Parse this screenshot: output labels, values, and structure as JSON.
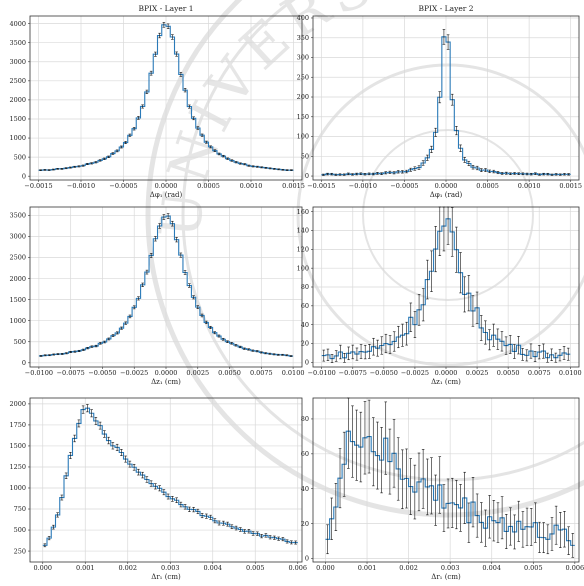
{
  "colors": {
    "hist": "#2a7ab8",
    "errbar": "#111111",
    "grid": "#d9d9d9",
    "watermark": "#e4e4e4"
  },
  "watermark_text": "UNIVERSITÄT",
  "chart_data": [
    {
      "id": "p1",
      "type": "step-histogram",
      "title": "BPIX - Layer 1",
      "xlabel": "Δφ₁ (rad)",
      "ylabel": "",
      "xlim": [
        -0.0016,
        0.0016
      ],
      "ylim": [
        -100,
        4200
      ],
      "xticks": [
        -0.0015,
        -0.001,
        -0.0005,
        0,
        0.0005,
        0.001,
        0.0015
      ],
      "xticklabels": [
        "−0.0015",
        "−0.0010",
        "−0.0005",
        "0.0000",
        "0.0005",
        "0.0010",
        "0.0015"
      ],
      "yticks": [
        0,
        500,
        1000,
        1500,
        2000,
        2500,
        3000,
        3500,
        4000
      ],
      "yticklabels": [
        "0",
        "500",
        "1000",
        "1500",
        "2000",
        "2500",
        "3000",
        "3500",
        "4000"
      ],
      "shape": "lorentz",
      "xmin": -0.0015,
      "xmax": 0.0015,
      "nbins": 60,
      "peak": 4000,
      "center": 0,
      "width": 0.00025,
      "base": 40,
      "err_scale": 1.0
    },
    {
      "id": "p2",
      "type": "step-histogram",
      "title": "BPIX - Layer 2",
      "xlabel": "Δφ₁ (rad)",
      "ylabel": "",
      "xlim": [
        -0.0016,
        0.0016
      ],
      "ylim": [
        -10,
        405
      ],
      "xticks": [
        -0.0015,
        -0.001,
        -0.0005,
        0,
        0.0005,
        0.001,
        0.0015
      ],
      "xticklabels": [
        "−0.0015",
        "−0.0010",
        "−0.0005",
        "0.0000",
        "0.0005",
        "0.0010",
        "0.0015"
      ],
      "yticks": [
        0,
        50,
        100,
        150,
        200,
        250,
        300,
        350,
        400
      ],
      "yticklabels": [
        "0",
        "50",
        "100",
        "150",
        "200",
        "250",
        "300",
        "350",
        "400"
      ],
      "shape": "lorentz",
      "xmin": -0.0015,
      "xmax": 0.0015,
      "nbins": 60,
      "peak": 375,
      "center": 0,
      "width": 8e-05,
      "base": 3,
      "err_scale": 1.0
    },
    {
      "id": "p3",
      "type": "step-histogram",
      "title": "",
      "xlabel": "Δz₁ (cm)",
      "ylabel": "",
      "xlim": [
        -0.0107,
        0.0107
      ],
      "ylim": [
        -100,
        3700
      ],
      "xticks": [
        -0.01,
        -0.0075,
        -0.005,
        -0.0025,
        0,
        0.0025,
        0.005,
        0.0075,
        0.01
      ],
      "xticklabels": [
        "−0.0100",
        "−0.0075",
        "−0.0050",
        "−0.0025",
        "0.0000",
        "0.0025",
        "0.0050",
        "0.0075",
        "0.0100"
      ],
      "yticks": [
        0,
        500,
        1000,
        1500,
        2000,
        2500,
        3000,
        3500
      ],
      "yticklabels": [
        "0",
        "500",
        "1000",
        "1500",
        "2000",
        "2500",
        "3000",
        "3500"
      ],
      "shape": "lorentz",
      "xmin": -0.01,
      "xmax": 0.01,
      "nbins": 60,
      "peak": 3500,
      "center": 0,
      "width": 0.0019,
      "base": 40,
      "err_scale": 1.0
    },
    {
      "id": "p4",
      "type": "step-histogram",
      "title": "",
      "xlabel": "Δz₁ (cm)",
      "ylabel": "",
      "xlim": [
        -0.0107,
        0.0107
      ],
      "ylim": [
        -5,
        165
      ],
      "xticks": [
        -0.01,
        -0.0075,
        -0.005,
        -0.0025,
        0,
        0.0025,
        0.005,
        0.0075,
        0.01
      ],
      "xticklabels": [
        "−0.0100",
        "−0.0075",
        "−0.0050",
        "−0.0025",
        "0.0000",
        "0.0025",
        "0.0050",
        "0.0075",
        "0.0100"
      ],
      "yticks": [
        0,
        20,
        40,
        60,
        80,
        100,
        120,
        140,
        160
      ],
      "yticklabels": [
        "0",
        "20",
        "40",
        "60",
        "80",
        "100",
        "120",
        "140",
        "160"
      ],
      "shape": "lorentz",
      "xmin": -0.01,
      "xmax": 0.01,
      "nbins": 60,
      "peak": 140,
      "center": 0,
      "width": 0.0018,
      "base": 2,
      "err_scale": 2.2
    },
    {
      "id": "p5",
      "type": "step-histogram",
      "title": "",
      "xlabel": "Δr₁ (cm)",
      "ylabel": "",
      "xlim": [
        -0.0003,
        0.0061
      ],
      "ylim": [
        120,
        2070
      ],
      "xticks": [
        0,
        0.001,
        0.002,
        0.003,
        0.004,
        0.005,
        0.006
      ],
      "xticklabels": [
        "0.000",
        "0.001",
        "0.002",
        "0.003",
        "0.004",
        "0.005",
        "0.006"
      ],
      "yticks": [
        250,
        500,
        750,
        1000,
        1250,
        1500,
        1750,
        2000
      ],
      "yticklabels": [
        "250",
        "500",
        "750",
        "1000",
        "1250",
        "1500",
        "1750",
        "2000"
      ],
      "shape": "skew",
      "xmin": 0,
      "xmax": 0.006,
      "nbins": 60,
      "peak": 1950,
      "peakx": 0.00105,
      "decay": 0.0022,
      "rise": 0.00045,
      "floor": 160,
      "err_scale": 1.0
    },
    {
      "id": "p6",
      "type": "step-histogram",
      "title": "",
      "xlabel": "Δr₁ (cm)",
      "ylabel": "",
      "xlim": [
        -0.0003,
        0.0061
      ],
      "ylim": [
        -2,
        92
      ],
      "xticks": [
        0,
        0.001,
        0.002,
        0.003,
        0.004,
        0.005,
        0.006
      ],
      "xticklabels": [
        "0.000",
        "0.001",
        "0.002",
        "0.003",
        "0.004",
        "0.005",
        "0.006"
      ],
      "yticks": [
        0,
        20,
        40,
        60,
        80
      ],
      "yticklabels": [
        "0",
        "20",
        "40",
        "60",
        "80"
      ],
      "shape": "skew",
      "xmin": 0,
      "xmax": 0.006,
      "nbins": 60,
      "peak": 75,
      "peakx": 0.0008,
      "decay": 0.0024,
      "rise": 0.0004,
      "floor": 4,
      "err_scale": 2.5
    }
  ]
}
